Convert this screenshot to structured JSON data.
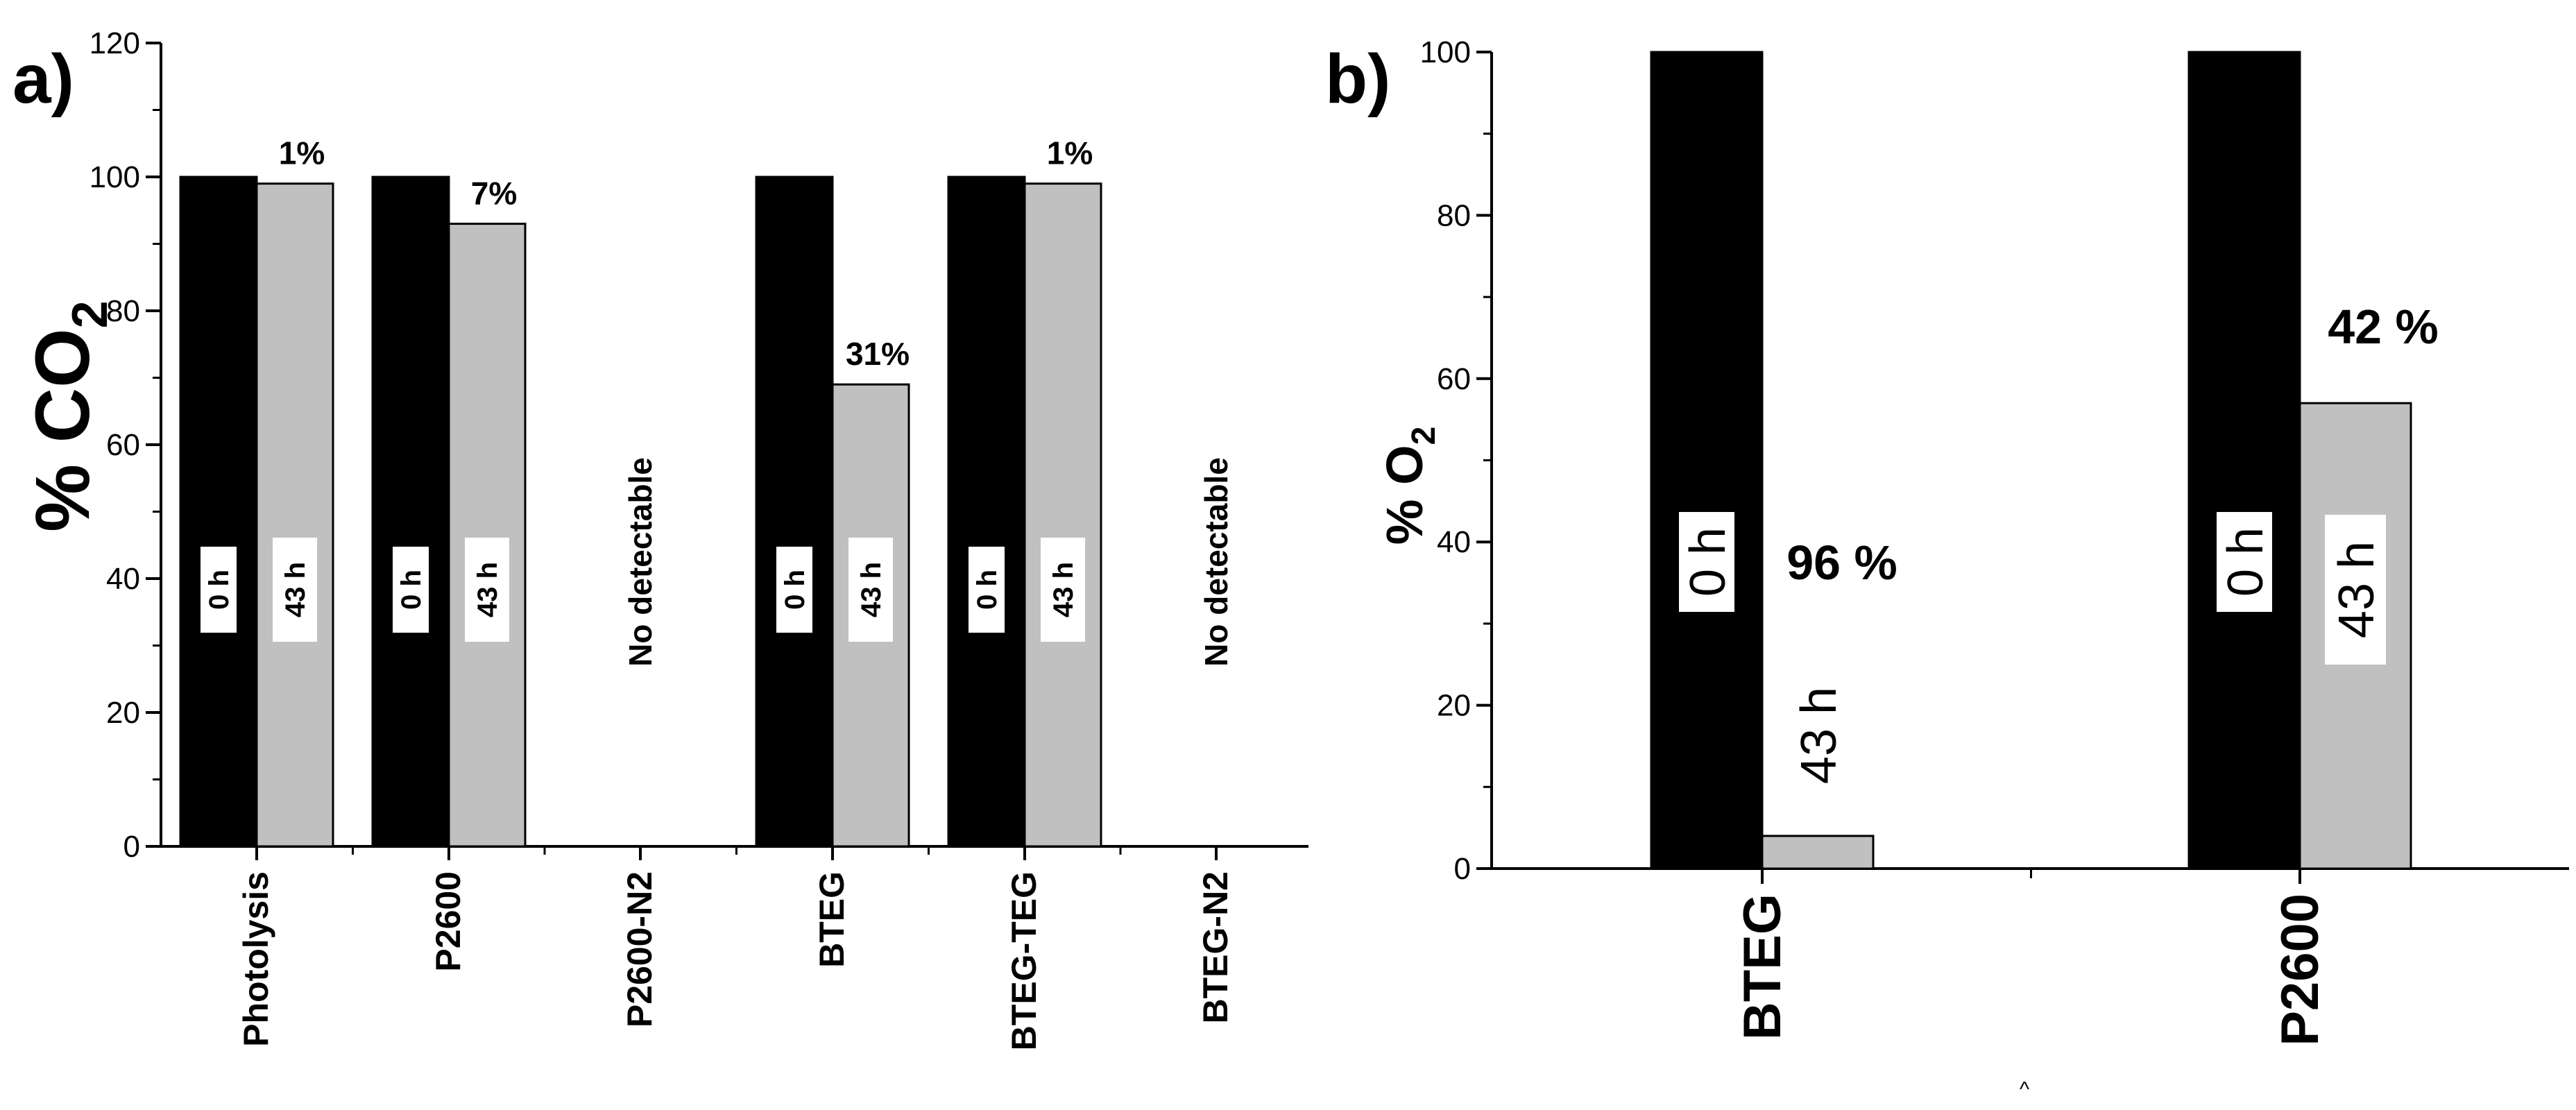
{
  "chart_data": [
    {
      "type": "bar",
      "panel_label": "a)",
      "ylabel_main": "% CO",
      "ylabel_sub": "2",
      "ylim": [
        0,
        120
      ],
      "yticks": [
        "0",
        "20",
        "40",
        "60",
        "80",
        "100",
        "120"
      ],
      "categories": [
        "Photolysis",
        "P2600",
        "P2600-N2",
        "BTEG",
        "BTEG-TEG",
        "BTEG-N2"
      ],
      "series": [
        {
          "name": "0 h",
          "color": "#000000",
          "values": [
            100,
            100,
            null,
            100,
            100,
            null
          ]
        },
        {
          "name": "43 h",
          "color": "#c0c0c0",
          "values": [
            99,
            93,
            null,
            69,
            99,
            null
          ]
        }
      ],
      "bar_labels": [
        "0 h",
        "43 h"
      ],
      "annotations": [
        "1%",
        "7%",
        "",
        "31%",
        "1%",
        ""
      ],
      "no_data_text": "No detectable"
    },
    {
      "type": "bar",
      "panel_label": "b)",
      "ylabel_main": "% O",
      "ylabel_sub": "2",
      "ylim": [
        0,
        100
      ],
      "yticks": [
        "0",
        "20",
        "40",
        "60",
        "80",
        "100"
      ],
      "categories": [
        "BTEG",
        "P2600"
      ],
      "series": [
        {
          "name": "0 h",
          "color": "#000000",
          "values": [
            100,
            100
          ]
        },
        {
          "name": "43 h",
          "color": "#c0c0c0",
          "values": [
            4,
            57
          ]
        }
      ],
      "bar_labels": [
        "0 h",
        "43 h"
      ],
      "annotations": [
        "96 %",
        "42 %"
      ]
    }
  ],
  "footer_mark": "^"
}
